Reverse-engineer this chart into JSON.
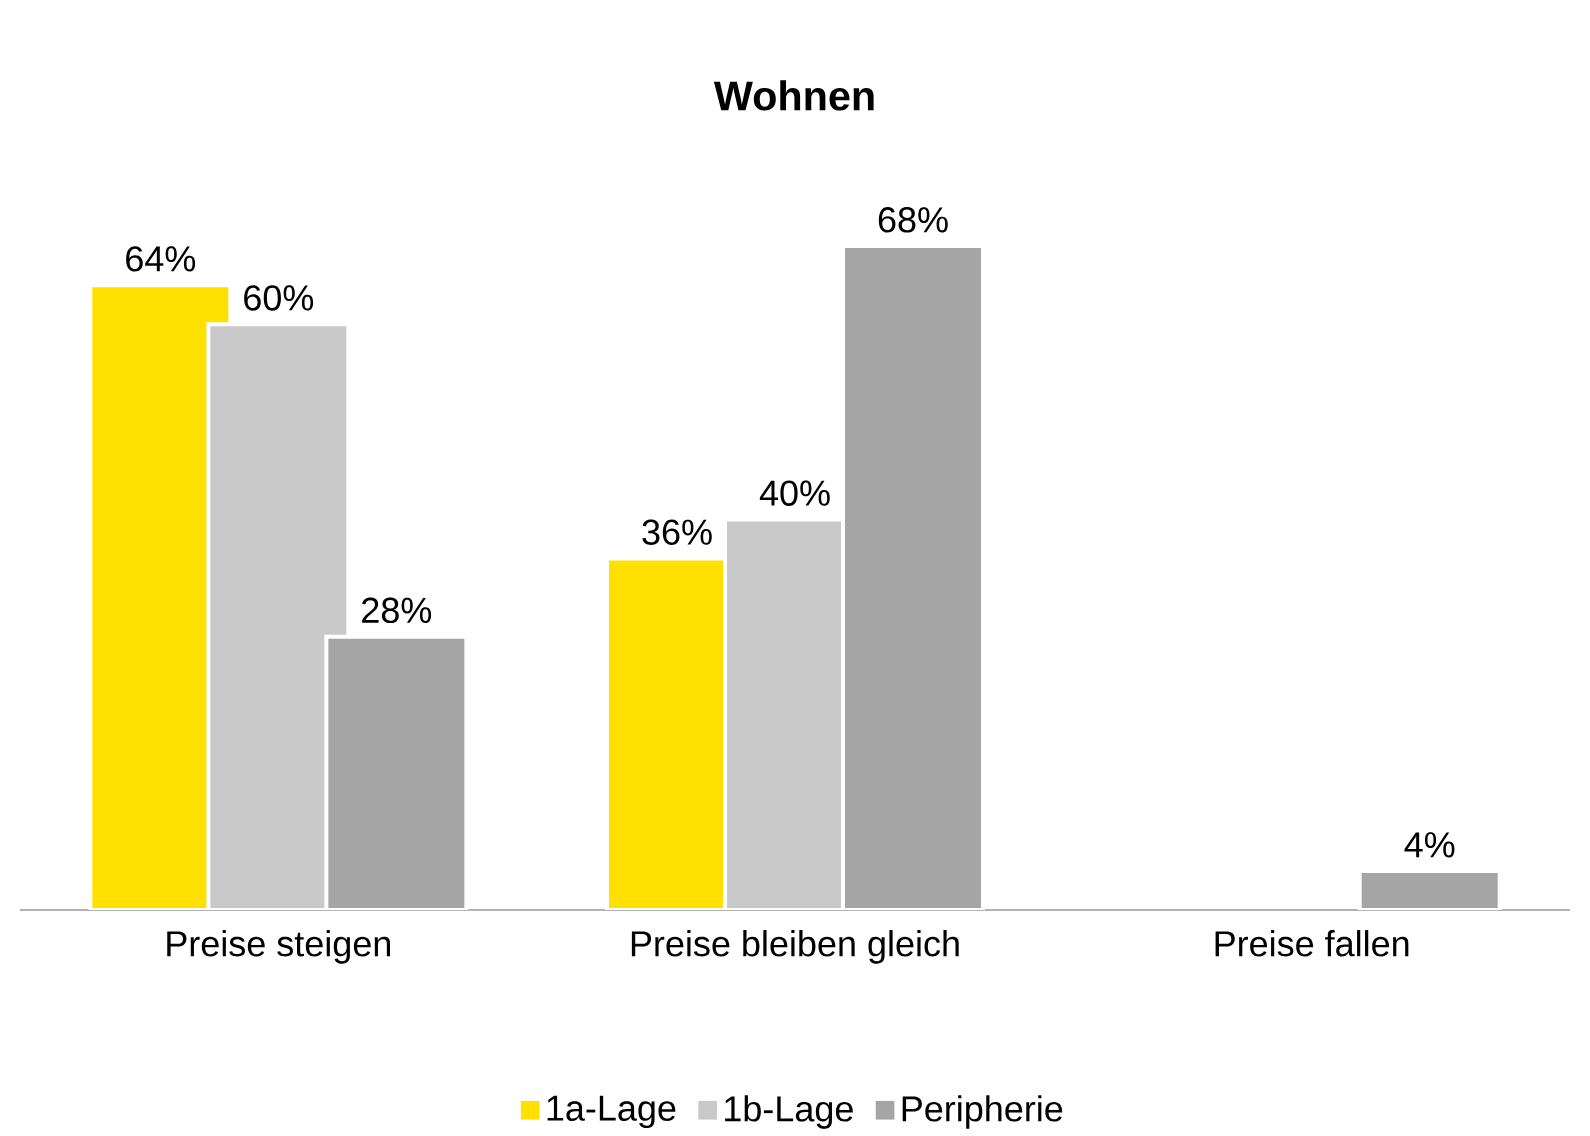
{
  "chart_data": {
    "type": "bar",
    "title": "Wohnen",
    "categories": [
      "Preise steigen",
      "Preise bleiben gleich",
      "Preise fallen"
    ],
    "series": [
      {
        "name": "1a-Lage",
        "color": "#ffe000",
        "values": [
          64,
          36,
          null
        ],
        "value_labels": [
          "64%",
          "36%",
          null
        ]
      },
      {
        "name": "1b-Lage",
        "color": "#c9c9c9",
        "values": [
          60,
          40,
          null
        ],
        "value_labels": [
          "60%",
          "40%",
          null
        ]
      },
      {
        "name": "Peripherie",
        "color": "#a5a5a5",
        "values": [
          28,
          68,
          4
        ],
        "value_labels": [
          "28%",
          "68%",
          "4%"
        ]
      }
    ],
    "legend": "bottom"
  }
}
